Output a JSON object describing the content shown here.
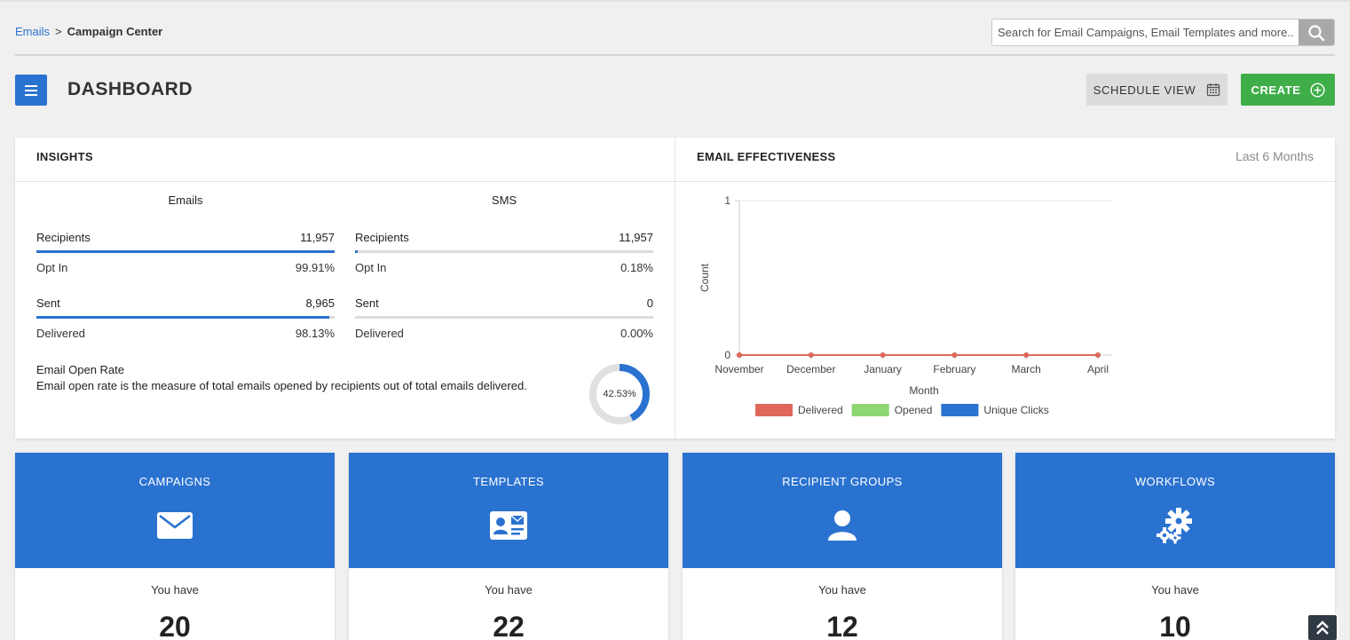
{
  "breadcrumb": {
    "root": "Emails",
    "separator": ">",
    "current": "Campaign Center"
  },
  "search": {
    "placeholder": "Search for Email Campaigns, Email Templates and more..."
  },
  "header": {
    "title": "DASHBOARD",
    "schedule_label": "SCHEDULE VIEW",
    "create_label": "CREATE"
  },
  "insights": {
    "title": "INSIGHTS",
    "emails": {
      "heading": "Emails",
      "recipients_label": "Recipients",
      "recipients_value": "11,957",
      "optin_label": "Opt In",
      "optin_value": "99.91%",
      "optin_fraction": 0.9991,
      "sent_label": "Sent",
      "sent_value": "8,965",
      "delivered_label": "Delivered",
      "delivered_value": "98.13%",
      "delivered_fraction": 0.9813
    },
    "sms": {
      "heading": "SMS",
      "recipients_label": "Recipients",
      "recipients_value": "11,957",
      "optin_label": "Opt In",
      "optin_value": "0.18%",
      "optin_fraction": 0.0018,
      "sent_label": "Sent",
      "sent_value": "0",
      "delivered_label": "Delivered",
      "delivered_value": "0.00%",
      "delivered_fraction": 0
    },
    "open_rate": {
      "title": "Email Open Rate",
      "description": "Email open rate is the measure of total emails opened by recipients out of total emails delivered.",
      "value_label": "42.53%",
      "fraction": 0.4253
    }
  },
  "effectiveness": {
    "title": "EMAIL EFFECTIVENESS",
    "period": "Last 6 Months"
  },
  "chart_data": {
    "type": "line",
    "categories": [
      "November",
      "December",
      "January",
      "February",
      "March",
      "April"
    ],
    "series": [
      {
        "name": "Delivered",
        "values": [
          0,
          0,
          0,
          0,
          0,
          0
        ],
        "color": "#e0685a"
      },
      {
        "name": "Opened",
        "values": [
          0,
          0,
          0,
          0,
          0,
          0
        ],
        "color": "#8ed674"
      },
      {
        "name": "Unique Clicks",
        "values": [
          0,
          0,
          0,
          0,
          0,
          0
        ],
        "color": "#2a72d0"
      }
    ],
    "xlabel": "Month",
    "ylabel": "Count",
    "ylim": [
      0,
      1
    ],
    "yticks": [
      "0",
      "1"
    ],
    "legend": "bottom"
  },
  "cards": [
    {
      "title": "CAMPAIGNS",
      "icon": "envelope-icon",
      "have_label": "You have",
      "count": "20"
    },
    {
      "title": "TEMPLATES",
      "icon": "contact-card-icon",
      "have_label": "You have",
      "count": "22"
    },
    {
      "title": "RECIPIENT GROUPS",
      "icon": "user-icon",
      "have_label": "You have",
      "count": "12"
    },
    {
      "title": "WORKFLOWS",
      "icon": "gears-icon",
      "have_label": "You have",
      "count": "10"
    }
  ],
  "colors": {
    "primary": "#2a72d0",
    "create": "#3fae49",
    "delivered": "#e0685a",
    "opened": "#8ed674",
    "clicks": "#2a72d0"
  }
}
